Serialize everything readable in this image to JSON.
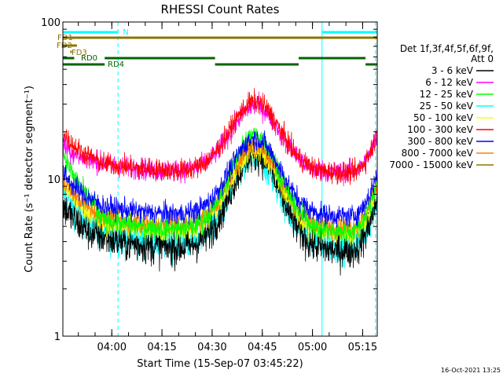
{
  "chart_data": {
    "type": "line",
    "title": "RHESSI Count Rates",
    "xlabel": "Start Time (15-Sep-07 03:45:22)",
    "ylabel": "Count Rate (s⁻¹ detector segment⁻¹)",
    "yscale": "log",
    "ylim": [
      1,
      100
    ],
    "y_ticks": [
      {
        "value": 1,
        "label": "1"
      },
      {
        "value": 10,
        "label": "10"
      },
      {
        "value": 100,
        "label": "100"
      }
    ],
    "x_range_min": [
      0,
      94
    ],
    "x_ticks": [
      {
        "min": 14.63,
        "label": "04:00"
      },
      {
        "min": 29.63,
        "label": "04:15"
      },
      {
        "min": 44.63,
        "label": "04:30"
      },
      {
        "min": 59.63,
        "label": "04:45"
      },
      {
        "min": 74.63,
        "label": "05:00"
      },
      {
        "min": 89.63,
        "label": "05:15"
      }
    ],
    "legend": {
      "header": [
        "Det 1f,3f,4f,5f,6f,9f,",
        "Att 0"
      ],
      "placement": "right"
    },
    "series": [
      {
        "name": "3 - 6 keV",
        "color": "#000000",
        "start": 6.8,
        "min": 3.5,
        "peak": 14.5
      },
      {
        "name": "6 - 12 keV",
        "color": "#ff00ff",
        "start": 16.5,
        "min": 11.0,
        "peak": 29.0
      },
      {
        "name": "12 - 25 keV",
        "color": "#00ff00",
        "start": 15.0,
        "min": 4.6,
        "peak": 19.0
      },
      {
        "name": "25 - 50 keV",
        "color": "#00ffff",
        "start": 8.5,
        "min": 3.8,
        "peak": 13.5
      },
      {
        "name": "50 - 100 keV",
        "color": "#ffff00",
        "start": 9.5,
        "min": 4.5,
        "peak": 15.0
      },
      {
        "name": "100 - 300 keV",
        "color": "#ff0000",
        "start": 19.5,
        "min": 11.0,
        "peak": 31.0
      },
      {
        "name": "300 - 800 keV",
        "color": "#0000ff",
        "start": 11.0,
        "min": 5.8,
        "peak": 18.0
      },
      {
        "name": "800 - 7000 keV",
        "color": "#ff8000",
        "start": 10.0,
        "min": 4.9,
        "peak": 16.5
      },
      {
        "name": "7000 - 15000 keV",
        "color": "#8b7500",
        "start": null,
        "min": null,
        "peak": null
      }
    ],
    "flags": [
      {
        "label": "N",
        "color": "#00ffff",
        "segments": [
          [
            0,
            16.5
          ],
          [
            77.5,
            94
          ]
        ]
      },
      {
        "label": "FD1",
        "color": "#8b7500",
        "segments": [
          [
            0,
            94
          ]
        ]
      },
      {
        "label": "FD2",
        "color": "#8b7500",
        "segments": [
          [
            0,
            4.2
          ]
        ]
      },
      {
        "label": "FD3",
        "color": "#8b7500",
        "segments": [
          [
            2.2,
            2.6
          ]
        ]
      },
      {
        "label": "RD0",
        "color": "#006400",
        "segments": [
          [
            0,
            3.4
          ],
          [
            12.5,
            45.5
          ],
          [
            70.5,
            90.5
          ]
        ]
      },
      {
        "label": "RD4",
        "color": "#006400",
        "segments": [
          [
            0,
            12.5
          ],
          [
            45.5,
            70.5
          ],
          [
            90.5,
            94
          ]
        ]
      }
    ],
    "vertical_markers": [
      {
        "min": 0.0,
        "style": "solid",
        "color": "#00ffff"
      },
      {
        "min": 16.5,
        "style": "dashed",
        "color": "#00ffff"
      },
      {
        "min": 77.5,
        "style": "solid",
        "color": "#00ffff"
      },
      {
        "min": 93.5,
        "style": "dashed",
        "color": "#00ffff"
      }
    ]
  },
  "footer": {
    "timestamp": "16-Oct-2021 13:25"
  }
}
